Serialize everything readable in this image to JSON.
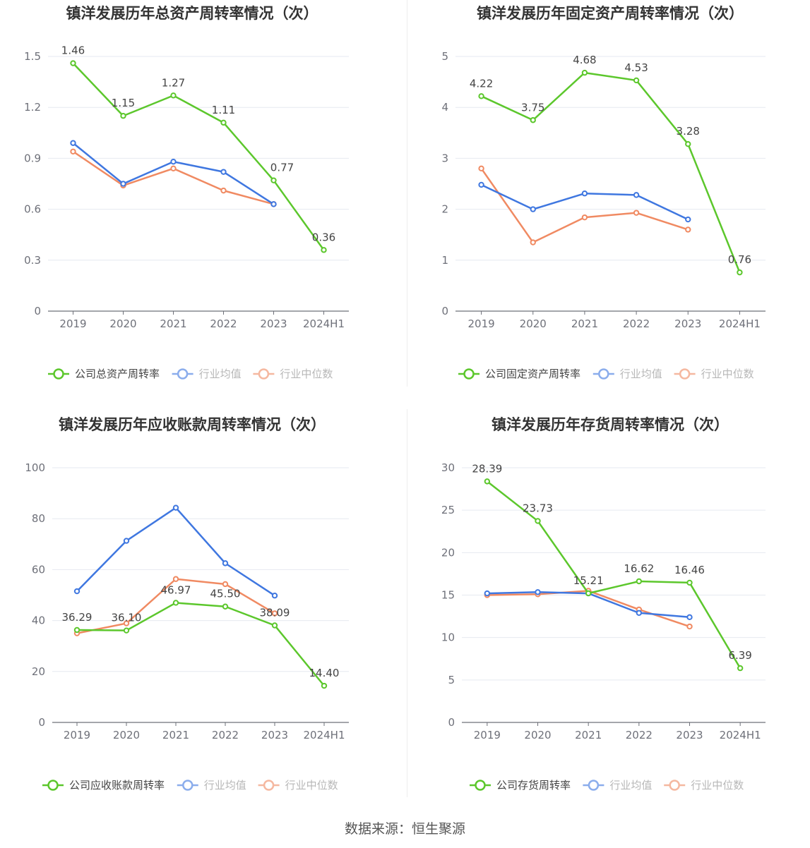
{
  "footer": "数据来源：恒生聚源",
  "colors": {
    "company": "#5cc72c",
    "avg": "#3f77e0",
    "median": "#f08a62"
  },
  "chart_data": [
    {
      "type": "line",
      "title": "镇洋发展历年总资产周转率情况（次）",
      "categories": [
        "2019",
        "2020",
        "2021",
        "2022",
        "2023",
        "2024H1"
      ],
      "ylim": [
        0,
        1.5
      ],
      "yticks": [
        "0",
        "0.3",
        "0.6",
        "0.9",
        "1.2",
        "1.5"
      ],
      "grid": true,
      "legend": "bottom",
      "series": [
        {
          "name": "公司总资产周转率",
          "key": "company",
          "values": [
            1.46,
            1.15,
            1.27,
            1.11,
            0.77,
            0.36
          ],
          "labels": [
            "1.46",
            "1.15",
            "1.27",
            "1.11",
            "0.77",
            "0.36"
          ]
        },
        {
          "name": "行业均值",
          "key": "avg",
          "values": [
            0.99,
            0.75,
            0.88,
            0.82,
            0.63,
            null
          ]
        },
        {
          "name": "行业中位数",
          "key": "median",
          "values": [
            0.94,
            0.74,
            0.84,
            0.71,
            0.63,
            null
          ]
        }
      ]
    },
    {
      "type": "line",
      "title": "镇洋发展历年固定资产周转率情况（次）",
      "categories": [
        "2019",
        "2020",
        "2021",
        "2022",
        "2023",
        "2024H1"
      ],
      "ylim": [
        0,
        5
      ],
      "yticks": [
        "0",
        "1",
        "2",
        "3",
        "4",
        "5"
      ],
      "grid": true,
      "legend": "bottom",
      "series": [
        {
          "name": "公司固定资产周转率",
          "key": "company",
          "values": [
            4.22,
            3.75,
            4.68,
            4.53,
            3.28,
            0.76
          ],
          "labels": [
            "4.22",
            "3.75",
            "4.68",
            "4.53",
            "3.28",
            "0.76"
          ]
        },
        {
          "name": "行业均值",
          "key": "avg",
          "values": [
            2.48,
            2.0,
            2.31,
            2.28,
            1.8,
            null
          ]
        },
        {
          "name": "行业中位数",
          "key": "median",
          "values": [
            2.8,
            1.35,
            1.84,
            1.93,
            1.6,
            null
          ]
        }
      ]
    },
    {
      "type": "line",
      "title": "镇洋发展历年应收账款周转率情况（次）",
      "categories": [
        "2019",
        "2020",
        "2021",
        "2022",
        "2023",
        "2024H1"
      ],
      "ylim": [
        0,
        100
      ],
      "yticks": [
        "0",
        "20",
        "40",
        "60",
        "80",
        "100"
      ],
      "grid": true,
      "legend": "bottom",
      "series": [
        {
          "name": "公司应收账款周转率",
          "key": "company",
          "values": [
            36.29,
            36.1,
            46.97,
            45.5,
            38.09,
            14.4
          ],
          "labels": [
            "36.29",
            "36.10",
            "46.97",
            "45.50",
            "38.09",
            "14.40"
          ]
        },
        {
          "name": "行业均值",
          "key": "avg",
          "values": [
            51.5,
            71.3,
            84.3,
            62.5,
            49.8,
            null
          ]
        },
        {
          "name": "行业中位数",
          "key": "median",
          "values": [
            35.0,
            38.9,
            56.3,
            54.3,
            42.8,
            null
          ]
        }
      ]
    },
    {
      "type": "line",
      "title": "镇洋发展历年存货周转率情况（次）",
      "categories": [
        "2019",
        "2020",
        "2021",
        "2022",
        "2023",
        "2024H1"
      ],
      "ylim": [
        0,
        30
      ],
      "yticks": [
        "0",
        "5",
        "10",
        "15",
        "20",
        "25",
        "30"
      ],
      "grid": true,
      "legend": "bottom",
      "series": [
        {
          "name": "公司存货周转率",
          "key": "company",
          "values": [
            28.39,
            23.73,
            15.21,
            16.62,
            16.46,
            6.39
          ],
          "labels": [
            "28.39",
            "23.73",
            "15.21",
            "16.62",
            "16.46",
            "6.39"
          ]
        },
        {
          "name": "行业均值",
          "key": "avg",
          "values": [
            15.2,
            15.35,
            15.2,
            12.9,
            12.4,
            null
          ]
        },
        {
          "name": "行业中位数",
          "key": "median",
          "values": [
            15.0,
            15.1,
            15.5,
            13.3,
            11.3,
            null
          ]
        }
      ]
    }
  ]
}
